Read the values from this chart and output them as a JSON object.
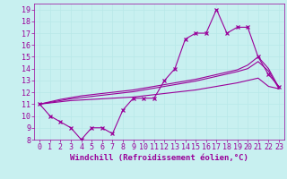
{
  "xlabel": "Windchill (Refroidissement éolien,°C)",
  "bg_color": "#c8f0f0",
  "line_color": "#990099",
  "grid_color": "#b8e8e8",
  "x_values": [
    0,
    1,
    2,
    3,
    4,
    5,
    6,
    7,
    8,
    9,
    10,
    11,
    12,
    13,
    14,
    15,
    16,
    17,
    18,
    19,
    20,
    21,
    22,
    23
  ],
  "y_main": [
    11.0,
    10.0,
    9.5,
    9.0,
    8.0,
    9.0,
    9.0,
    8.5,
    10.5,
    11.5,
    11.5,
    11.5,
    13.0,
    14.0,
    16.5,
    17.0,
    17.0,
    19.0,
    17.0,
    17.5,
    17.5,
    15.0,
    13.5,
    12.5
  ],
  "y_trend1": [
    11.0,
    11.1,
    11.2,
    11.3,
    11.35,
    11.4,
    11.45,
    11.5,
    11.55,
    11.6,
    11.7,
    11.8,
    11.9,
    12.0,
    12.1,
    12.2,
    12.35,
    12.5,
    12.65,
    12.8,
    13.0,
    13.2,
    12.5,
    12.3
  ],
  "y_trend2": [
    11.0,
    11.15,
    11.3,
    11.45,
    11.55,
    11.65,
    11.75,
    11.85,
    11.95,
    12.05,
    12.2,
    12.35,
    12.5,
    12.65,
    12.8,
    12.95,
    13.15,
    13.35,
    13.55,
    13.75,
    14.0,
    14.6,
    13.8,
    12.3
  ],
  "y_trend3": [
    11.0,
    11.2,
    11.4,
    11.55,
    11.7,
    11.8,
    11.9,
    12.0,
    12.1,
    12.2,
    12.35,
    12.5,
    12.65,
    12.8,
    12.95,
    13.1,
    13.3,
    13.5,
    13.7,
    13.9,
    14.3,
    15.0,
    14.0,
    12.4
  ],
  "ylim": [
    8,
    19.5
  ],
  "xlim": [
    -0.5,
    23.5
  ],
  "yticks": [
    8,
    9,
    10,
    11,
    12,
    13,
    14,
    15,
    16,
    17,
    18,
    19
  ],
  "xticks": [
    0,
    1,
    2,
    3,
    4,
    5,
    6,
    7,
    8,
    9,
    10,
    11,
    12,
    13,
    14,
    15,
    16,
    17,
    18,
    19,
    20,
    21,
    22,
    23
  ],
  "fontsize_label": 6.5,
  "fontsize_tick": 6.0
}
